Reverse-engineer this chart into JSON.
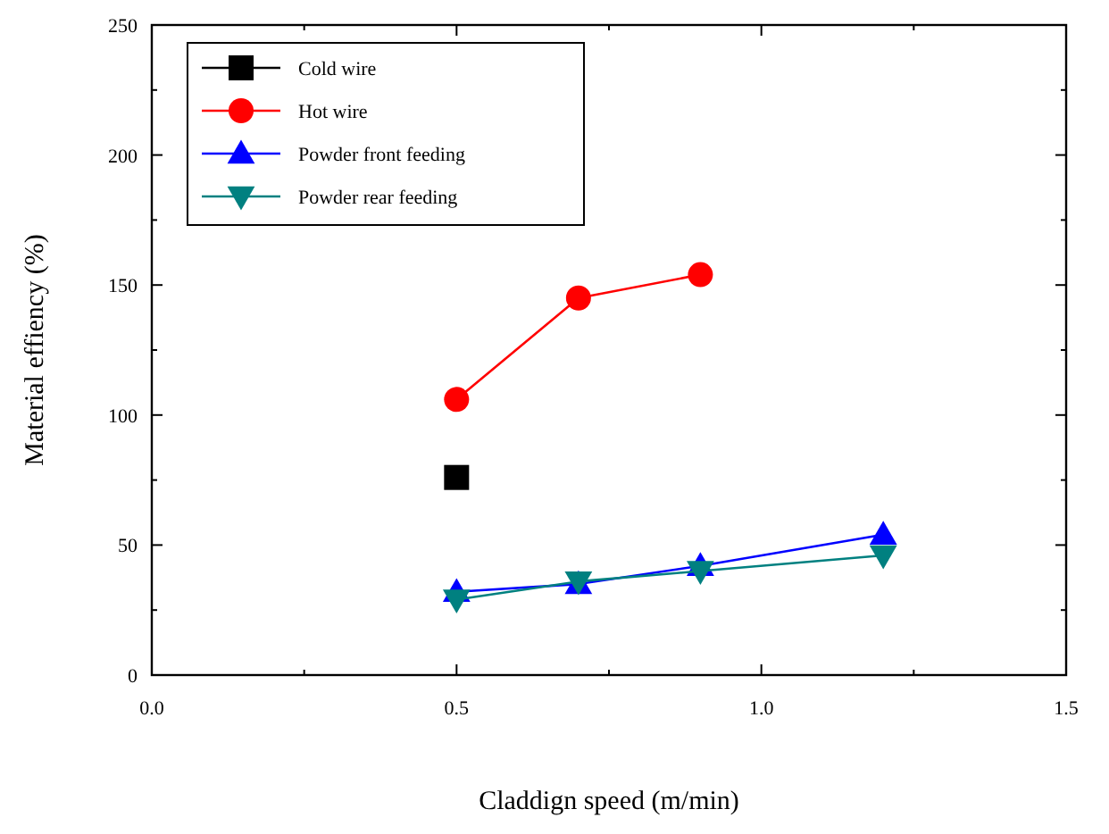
{
  "chart_data": {
    "type": "line",
    "xlabel": "Claddign speed (m/min)",
    "ylabel": "Material effiency (%)",
    "xlim": [
      0,
      1.5
    ],
    "ylim": [
      0,
      250
    ],
    "xticks": [
      {
        "value": 0,
        "label": "0.0"
      },
      {
        "value": 0.25,
        "label": null
      },
      {
        "value": 0.5,
        "label": "0.5"
      },
      {
        "value": 0.75,
        "label": null
      },
      {
        "value": 1,
        "label": "1.0"
      },
      {
        "value": 1.25,
        "label": null
      },
      {
        "value": 1.5,
        "label": "1.5"
      }
    ],
    "yticks": [
      0,
      {
        "value": 25,
        "label": null
      },
      50,
      {
        "value": 75,
        "label": null
      },
      100,
      {
        "value": 125,
        "label": null
      },
      150,
      {
        "value": 175,
        "label": null
      },
      200,
      {
        "value": 225,
        "label": null
      },
      250
    ],
    "legend": "top left",
    "grid": false,
    "line_style": "solid",
    "series": [
      {
        "name": "Cold wire",
        "color": "#000000",
        "marker": "square",
        "x": [
          0.5
        ],
        "values": [
          76
        ]
      },
      {
        "name": "Hot wire",
        "color": "#ff0000",
        "marker": "circle",
        "x": [
          0.5,
          0.7,
          0.9
        ],
        "values": [
          106,
          145,
          154
        ]
      },
      {
        "name": "Powder front feeding",
        "color": "#0000ff",
        "marker": "triangle",
        "x": [
          0.5,
          0.7,
          0.9,
          1.2
        ],
        "values": [
          32,
          35,
          42,
          54
        ]
      },
      {
        "name": "Powder rear feeding",
        "color": "#008080",
        "marker": "triangle-down",
        "x": [
          0.5,
          0.7,
          0.9,
          1.2
        ],
        "values": [
          29,
          36,
          40,
          46
        ]
      }
    ]
  }
}
